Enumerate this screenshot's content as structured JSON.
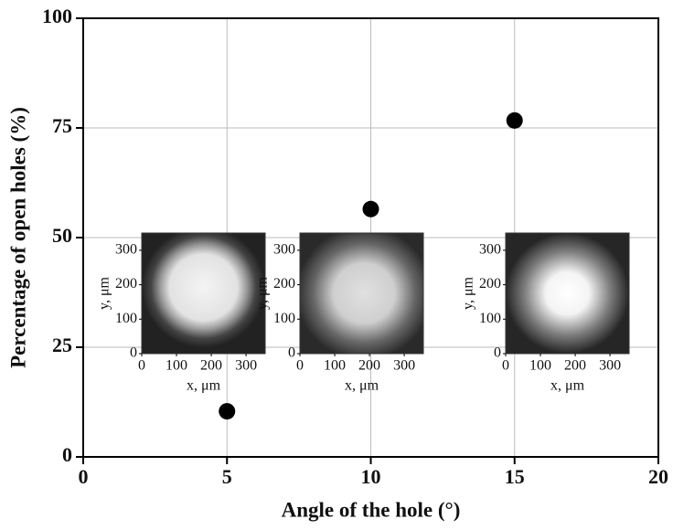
{
  "chart_data": [
    {
      "type": "scatter",
      "xlabel": "Angle of the hole (°)",
      "ylabel": "Percentage of open holes (%)",
      "x": [
        5,
        10,
        15
      ],
      "values": [
        10.4,
        56.5,
        76.7
      ],
      "color": "#000000",
      "xlim": [
        0,
        20
      ],
      "xticks": [
        0,
        5,
        10,
        15,
        20
      ],
      "ylim": [
        0,
        100
      ],
      "yticks": [
        0,
        25,
        50,
        75,
        100
      ],
      "grid": true
    },
    {
      "type": "image",
      "xlabel": "x, μm",
      "ylabel": "y, μm",
      "xlim": [
        0,
        355
      ],
      "ylim": [
        0,
        350
      ],
      "xticks": [
        0,
        100,
        200,
        300
      ],
      "yticks": [
        0,
        100,
        200,
        300
      ]
    },
    {
      "type": "image",
      "xlabel": "x, μm",
      "ylabel": "y, μm",
      "xlim": [
        0,
        355
      ],
      "ylim": [
        0,
        350
      ],
      "xticks": [
        0,
        100,
        200,
        300
      ],
      "yticks": [
        0,
        100,
        200,
        300
      ]
    },
    {
      "type": "image",
      "xlabel": "x, μm",
      "ylabel": "y, μm",
      "xlim": [
        0,
        355
      ],
      "ylim": [
        0,
        350
      ],
      "xticks": [
        0,
        100,
        200,
        300
      ],
      "yticks": [
        0,
        100,
        200,
        300
      ]
    }
  ]
}
